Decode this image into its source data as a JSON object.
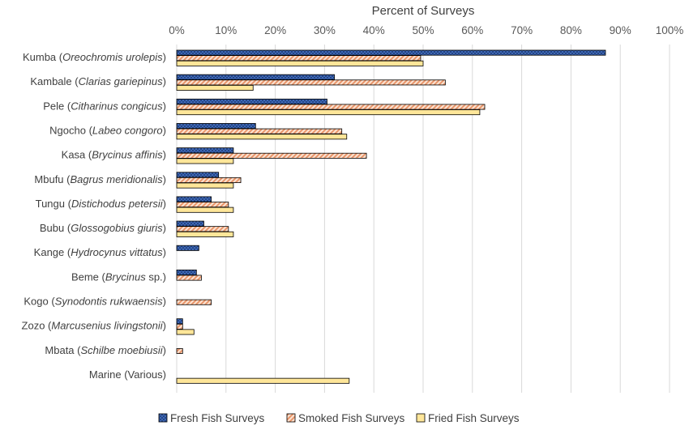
{
  "chart_data": {
    "type": "bar",
    "orientation": "horizontal",
    "xlabel": "Percent of Surveys",
    "xaxis_position": "top",
    "xlim": [
      0,
      100
    ],
    "xticks": [
      "0%",
      "10%",
      "20%",
      "30%",
      "40%",
      "50%",
      "60%",
      "70%",
      "80%",
      "90%",
      "100%"
    ],
    "grid": true,
    "legend_position": "bottom",
    "categories": [
      {
        "common": "Kumba",
        "sci": "Oreochromis urolepis"
      },
      {
        "common": "Kambale",
        "sci": "Clarias gariepinus"
      },
      {
        "common": "Pele",
        "sci": "Citharinus congicus"
      },
      {
        "common": "Ngocho",
        "sci": "Labeo congoro"
      },
      {
        "common": "Kasa",
        "sci": "Brycinus affinis"
      },
      {
        "common": "Mbufu",
        "sci": "Bagrus meridionalis"
      },
      {
        "common": "Tungu",
        "sci": "Distichodus petersii"
      },
      {
        "common": "Bubu",
        "sci": "Glossogobius giuris"
      },
      {
        "common": "Kange",
        "sci": "Hydrocynus vittatus"
      },
      {
        "common": "Beme",
        "sci": "Brycinus",
        "suffix": " sp."
      },
      {
        "common": "Kogo",
        "sci": "Synodontis rukwaensis"
      },
      {
        "common": "Zozo",
        "sci": "Marcusenius livingstonii"
      },
      {
        "common": "Mbata",
        "sci": "Schilbe moebiusii"
      },
      {
        "common": "Marine",
        "sci": "",
        "plain": "Various"
      }
    ],
    "series": [
      {
        "name": "Fresh Fish Surveys",
        "color": "#4472c4",
        "pattern": "crosshatch",
        "values": [
          87,
          32,
          30.5,
          16,
          11.5,
          8.5,
          7,
          5.5,
          4.5,
          4,
          0,
          1.2,
          0,
          0
        ]
      },
      {
        "name": "Smoked Fish Surveys",
        "color": "#f4b183",
        "pattern": "diagonal",
        "values": [
          49.5,
          54.5,
          62.5,
          33.5,
          38.5,
          13,
          10.5,
          10.5,
          0,
          5,
          7,
          1.2,
          1.2,
          0
        ]
      },
      {
        "name": "Fried Fish Surveys",
        "color": "#ffe699",
        "pattern": "solid",
        "values": [
          50,
          15.5,
          61.5,
          34.5,
          11.5,
          11.5,
          11.5,
          11.5,
          0,
          0,
          0,
          3.5,
          0,
          35
        ]
      }
    ]
  }
}
